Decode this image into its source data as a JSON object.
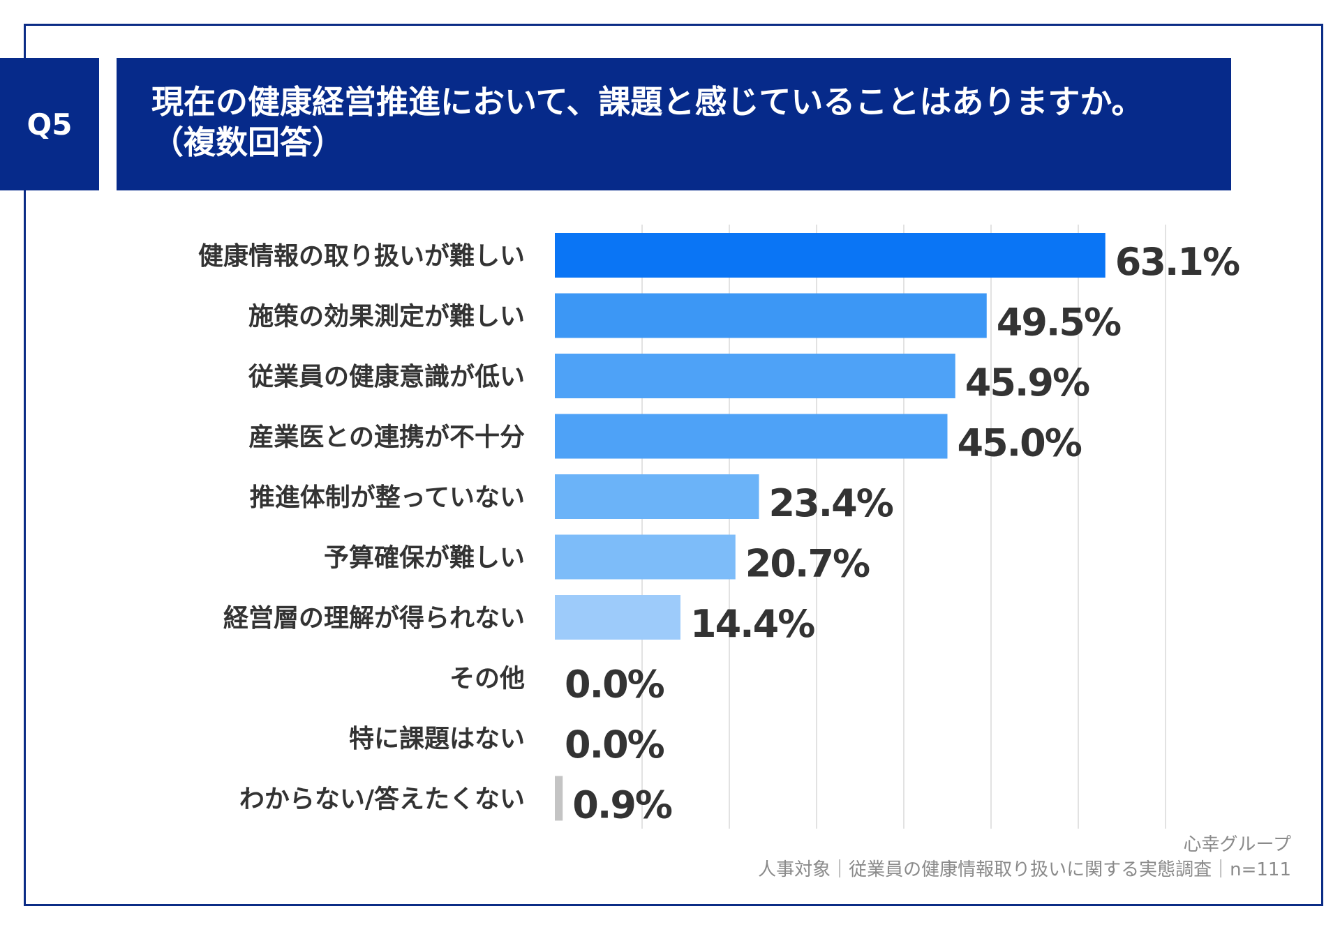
{
  "header": {
    "question_tag": "Q5",
    "title_line1": "現在の健康経営推進において、課題と感じていることはありますか。",
    "title_line2": "（複数回答）",
    "background_color": "#062a8a"
  },
  "chart_data": {
    "type": "bar",
    "orientation": "horizontal",
    "categories": [
      "健康情報の取り扱いが難しい",
      "施策の効果測定が難しい",
      "従業員の健康意識が低い",
      "産業医との連携が不十分",
      "推進体制が整っていない",
      "予算確保が難しい",
      "経営層の理解が得られない",
      "その他",
      "特に課題はない",
      "わからない/答えたくない"
    ],
    "values": [
      63.1,
      49.5,
      45.9,
      45.0,
      23.4,
      20.7,
      14.4,
      0.0,
      0.0,
      0.9
    ],
    "value_labels": [
      "63.1%",
      "49.5%",
      "45.9%",
      "45.0%",
      "23.4%",
      "20.7%",
      "14.4%",
      "0.0%",
      "0.0%",
      "0.9%"
    ],
    "bar_colors": [
      "#0a75f5",
      "#3c97f5",
      "#4ea2f7",
      "#4ea2f7",
      "#6bb3f8",
      "#7dbcf9",
      "#9dcbfa",
      "#4ea2f7",
      "#4ea2f7",
      "#c4c4c4"
    ],
    "xlim": [
      0,
      70
    ],
    "grid": true,
    "grid_step": 10
  },
  "source": {
    "company": "心幸グループ",
    "survey": "人事対象｜従業員の健康情報取り扱いに関する実態調査｜n=111"
  }
}
